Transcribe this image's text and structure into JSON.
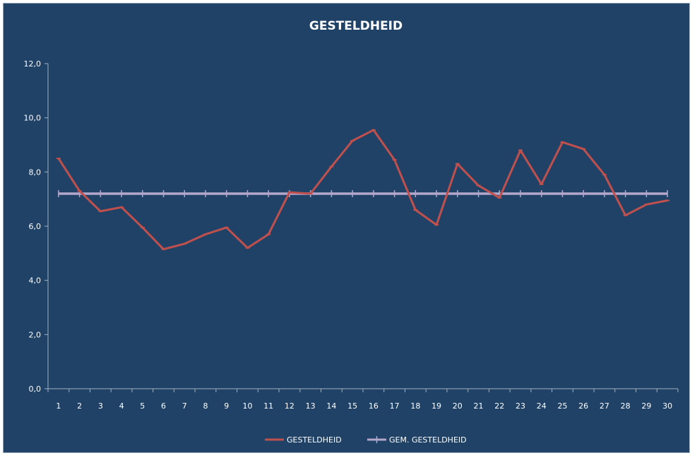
{
  "chart_data": {
    "type": "line",
    "title": "GESTELDHEID",
    "xlabel": "",
    "ylabel": "",
    "categories": [
      "1",
      "2",
      "3",
      "4",
      "5",
      "6",
      "7",
      "8",
      "9",
      "10",
      "11",
      "12",
      "13",
      "14",
      "15",
      "16",
      "17",
      "18",
      "19",
      "20",
      "21",
      "22",
      "23",
      "24",
      "25",
      "26",
      "27",
      "28",
      "29",
      "30"
    ],
    "ylim": [
      0,
      12
    ],
    "yticks": [
      "0,0",
      "2,0",
      "4,0",
      "6,0",
      "8,0",
      "10,0",
      "12,0"
    ],
    "grid": false,
    "legend_position": "bottom",
    "series": [
      {
        "name": "GESTELDHEID",
        "color": "#c0504d",
        "values": [
          8.5,
          7.3,
          6.55,
          6.7,
          5.95,
          5.15,
          5.35,
          5.7,
          5.95,
          5.2,
          5.7,
          7.25,
          7.2,
          8.2,
          9.15,
          9.55,
          8.45,
          6.6,
          6.05,
          8.3,
          7.5,
          7.05,
          8.8,
          7.55,
          9.1,
          8.85,
          7.9,
          6.4,
          6.8,
          6.95
        ]
      },
      {
        "name": "GEM. GESTELDHEID",
        "color": "#b3a7cc",
        "values": [
          7.2,
          7.2,
          7.2,
          7.2,
          7.2,
          7.2,
          7.2,
          7.2,
          7.2,
          7.2,
          7.2,
          7.2,
          7.2,
          7.2,
          7.2,
          7.2,
          7.2,
          7.2,
          7.2,
          7.2,
          7.2,
          7.2,
          7.2,
          7.2,
          7.2,
          7.2,
          7.2,
          7.2,
          7.2,
          7.2
        ]
      }
    ]
  }
}
